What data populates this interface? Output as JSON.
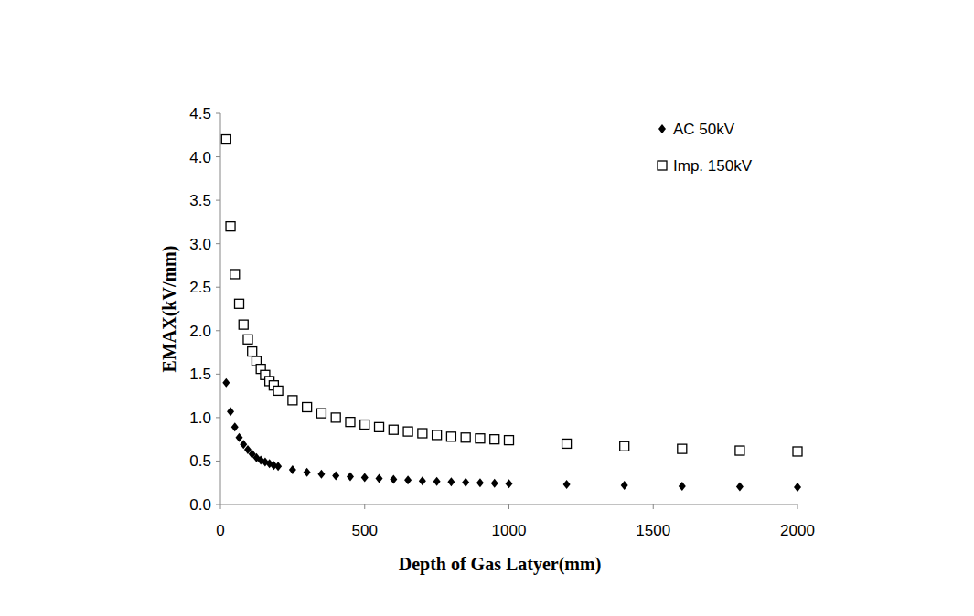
{
  "chart_data": {
    "type": "scatter",
    "x_label": "Depth of Gas Latyer(mm)",
    "y_label": "EMAX(kV/mm)",
    "x": [
      20,
      35,
      50,
      65,
      80,
      95,
      110,
      125,
      140,
      155,
      170,
      185,
      200,
      250,
      300,
      350,
      400,
      450,
      500,
      550,
      600,
      650,
      700,
      750,
      800,
      850,
      900,
      950,
      1000,
      1200,
      1400,
      1600,
      1800,
      2000
    ],
    "series": [
      {
        "name": "AC 50kV",
        "color": "#000000",
        "marker": "diamond",
        "values": [
          1.4,
          1.07,
          0.89,
          0.77,
          0.69,
          0.63,
          0.58,
          0.54,
          0.51,
          0.49,
          0.47,
          0.45,
          0.44,
          0.4,
          0.37,
          0.35,
          0.33,
          0.32,
          0.31,
          0.3,
          0.29,
          0.28,
          0.27,
          0.265,
          0.26,
          0.255,
          0.25,
          0.245,
          0.24,
          0.23,
          0.22,
          0.21,
          0.205,
          0.2
        ]
      },
      {
        "name": "Imp. 150kV",
        "color": "#000000",
        "marker": "square",
        "values": [
          4.2,
          3.2,
          2.65,
          2.31,
          2.07,
          1.9,
          1.76,
          1.65,
          1.56,
          1.49,
          1.42,
          1.37,
          1.31,
          1.2,
          1.12,
          1.05,
          1.0,
          0.95,
          0.92,
          0.89,
          0.86,
          0.84,
          0.82,
          0.8,
          0.78,
          0.77,
          0.76,
          0.75,
          0.74,
          0.7,
          0.67,
          0.64,
          0.62,
          0.61
        ]
      }
    ],
    "xlim": [
      0,
      2000
    ],
    "xticks": [
      0,
      500,
      1000,
      1500,
      2000
    ],
    "ylim": [
      0,
      4.5
    ],
    "yticks": [
      {
        "value": 0,
        "label": "0.0"
      },
      {
        "value": 0.5,
        "label": "0.5"
      },
      {
        "value": 1,
        "label": "1.0"
      },
      {
        "value": 1.5,
        "label": "1.5"
      },
      {
        "value": 2,
        "label": "2.0"
      },
      {
        "value": 2.5,
        "label": "2.5"
      },
      {
        "value": 3,
        "label": "3.0"
      },
      {
        "value": 3.5,
        "label": "3.5"
      },
      {
        "value": 4,
        "label": "4.0"
      },
      {
        "value": 4.5,
        "label": "4.5"
      }
    ],
    "legend": "top-right",
    "grid": false
  }
}
